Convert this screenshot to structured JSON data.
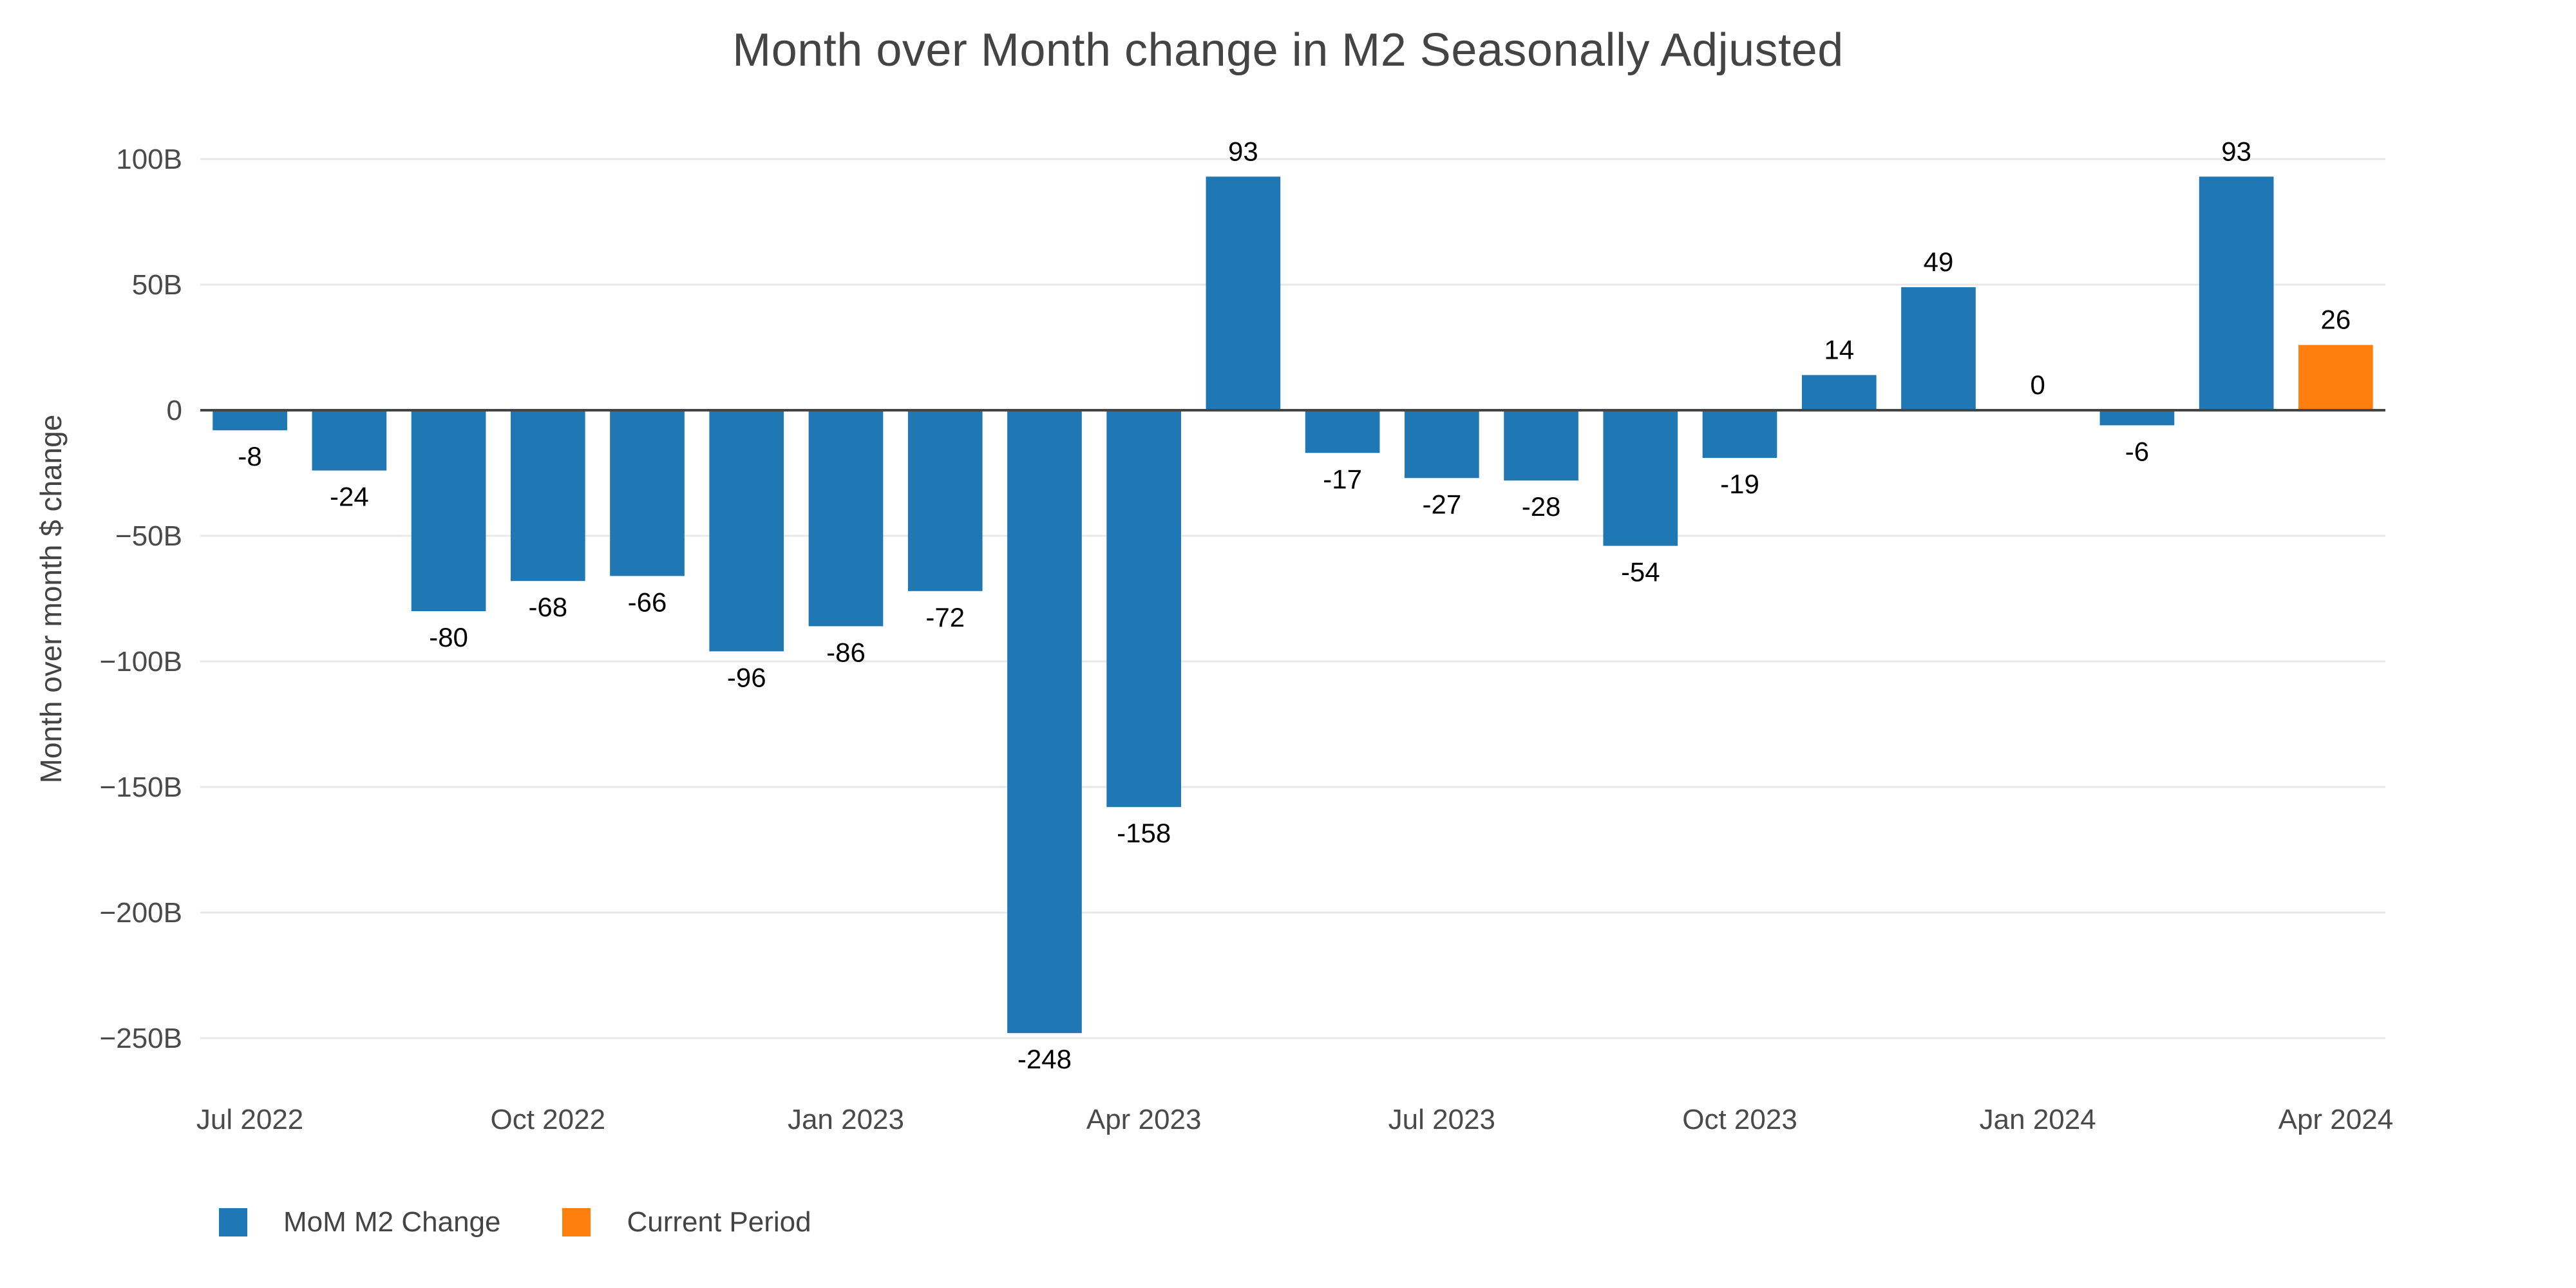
{
  "title": "Month over Month change in M2 Seasonally Adjusted",
  "colors": {
    "bar_blue": "#1f77b4",
    "bar_orange": "#ff7f0e",
    "gridline": "#e8e8e8",
    "zeroline": "#444444",
    "axis_text": "#4a4a4a",
    "value_label": "#000000",
    "title_text": "#444444"
  },
  "legend": {
    "items": [
      {
        "label": "MoM M2 Change",
        "color": "#1f77b4"
      },
      {
        "label": "Current Period",
        "color": "#ff7f0e"
      }
    ]
  },
  "chart_data": {
    "type": "bar",
    "title": "Month over Month change in M2 Seasonally Adjusted",
    "xlabel": "",
    "ylabel": "Month over month $ change",
    "x": [
      "Jul 2022",
      "Aug 2022",
      "Sep 2022",
      "Oct 2022",
      "Nov 2022",
      "Dec 2022",
      "Jan 2023",
      "Feb 2023",
      "Mar 2023",
      "Apr 2023",
      "May 2023",
      "Jun 2023",
      "Jul 2023",
      "Aug 2023",
      "Sep 2023",
      "Oct 2023",
      "Nov 2023",
      "Dec 2023",
      "Jan 2024",
      "Feb 2024",
      "Mar 2024",
      "Apr 2024"
    ],
    "values": [
      -8,
      -24,
      -80,
      -68,
      -66,
      -96,
      -86,
      -72,
      -248,
      -158,
      93,
      -17,
      -27,
      -28,
      -54,
      -19,
      14,
      49,
      0,
      -6,
      93,
      26
    ],
    "series": [
      {
        "name": "MoM M2 Change",
        "color": "#1f77b4"
      },
      {
        "name": "Current Period",
        "color": "#ff7f0e"
      }
    ],
    "current_period_index": 21,
    "value_labels": [
      "-8",
      "-24",
      "-80",
      "-68",
      "-66",
      "-96",
      "-86",
      "-72",
      "-248",
      "-158",
      "93",
      "-17",
      "-27",
      "-28",
      "-54",
      "-19",
      "14",
      "49",
      "0",
      "-6",
      "93",
      "26"
    ],
    "ytick_values": [
      100,
      50,
      0,
      -50,
      -100,
      -150,
      -200,
      -250
    ],
    "ytick_labels": [
      "100B",
      "50B",
      "0",
      "−50B",
      "−100B",
      "−150B",
      "−200B",
      "−250B"
    ],
    "xtick_indices": [
      0,
      3,
      6,
      9,
      12,
      15,
      18,
      21
    ],
    "xtick_labels": [
      "Jul 2022",
      "Oct 2022",
      "Jan 2023",
      "Apr 2023",
      "Jul 2023",
      "Oct 2023",
      "Jan 2024",
      "Apr 2024"
    ],
    "ylim": [
      -270,
      110
    ],
    "grid": "horizontal",
    "legend_position": "bottom-left"
  }
}
